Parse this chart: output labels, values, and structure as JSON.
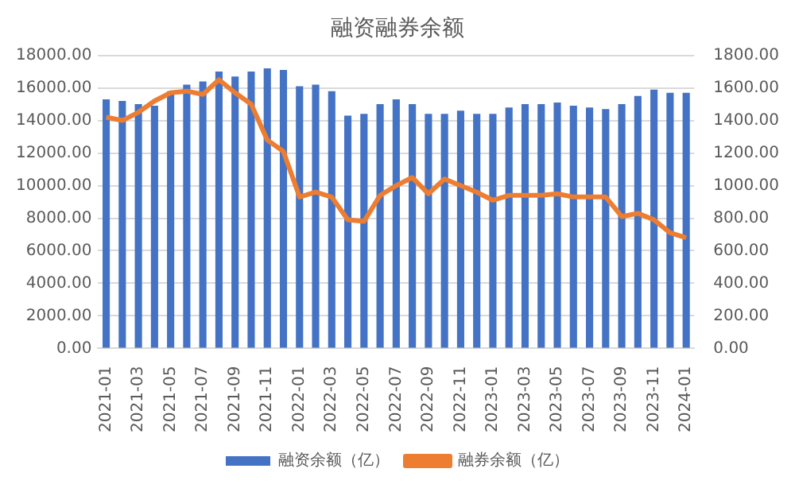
{
  "chart_data": {
    "type": "bar",
    "title": "融资融券余额",
    "categories": [
      "2021-01",
      null,
      "2021-03",
      null,
      "2021-05",
      null,
      "2021-07",
      null,
      "2021-09",
      null,
      "2021-11",
      null,
      "2022-01",
      null,
      "2022-03",
      null,
      "2022-05",
      null,
      "2022-07",
      null,
      "2022-09",
      null,
      "2022-11",
      null,
      "2023-01",
      null,
      "2023-03",
      null,
      "2023-05",
      null,
      "2023-07",
      null,
      "2023-09",
      null,
      "2023-11",
      null,
      "2024-01"
    ],
    "series": [
      {
        "name": "融资余额（亿）",
        "color": "#4472c4",
        "values": [
          15300,
          15200,
          15000,
          14900,
          15800,
          16200,
          16400,
          17000,
          16700,
          17000,
          17200,
          17100,
          16100,
          16200,
          15800,
          14300,
          14400,
          15000,
          15300,
          15000,
          14400,
          14400,
          14600,
          14400,
          14400,
          14800,
          15000,
          15000,
          15100,
          14900,
          14800,
          14700,
          15000,
          15500,
          15900,
          15700,
          15700
        ]
      },
      {
        "name": "融券余额（亿）",
        "type": "line",
        "axis": "y2",
        "color": "#ed7d31",
        "values": [
          1420,
          1400,
          1450,
          1520,
          1570,
          1580,
          1560,
          1650,
          1570,
          1500,
          1280,
          1210,
          930,
          960,
          930,
          790,
          780,
          940,
          1000,
          1050,
          950,
          1040,
          1000,
          960,
          910,
          940,
          940,
          940,
          950,
          930,
          930,
          930,
          810,
          830,
          790,
          710,
          680
        ]
      }
    ],
    "ylim": [
      0,
      18000
    ],
    "yticks": [
      {
        "value": 0,
        "label": "0.00"
      },
      {
        "value": 2000,
        "label": "2000.00"
      },
      {
        "value": 4000,
        "label": "4000.00"
      },
      {
        "value": 6000,
        "label": "6000.00"
      },
      {
        "value": 8000,
        "label": "8000.00"
      },
      {
        "value": 10000,
        "label": "10000.00"
      },
      {
        "value": 12000,
        "label": "12000.00"
      },
      {
        "value": 14000,
        "label": "14000.00"
      },
      {
        "value": 16000,
        "label": "16000.00"
      },
      {
        "value": 18000,
        "label": "18000.00"
      }
    ],
    "y2lim": [
      0,
      1800
    ],
    "y2ticks": [
      {
        "value": 0,
        "label": "0.00"
      },
      {
        "value": 200,
        "label": "200.00"
      },
      {
        "value": 400,
        "label": "400.00"
      },
      {
        "value": 600,
        "label": "600.00"
      },
      {
        "value": 800,
        "label": "800.00"
      },
      {
        "value": 1000,
        "label": "1000.00"
      },
      {
        "value": 1200,
        "label": "1200.00"
      },
      {
        "value": 1400,
        "label": "1400.00"
      },
      {
        "value": 1600,
        "label": "1600.00"
      },
      {
        "value": 1800,
        "label": "1800.00"
      }
    ],
    "grid": "y",
    "legend": "bottom",
    "marker": "none"
  }
}
